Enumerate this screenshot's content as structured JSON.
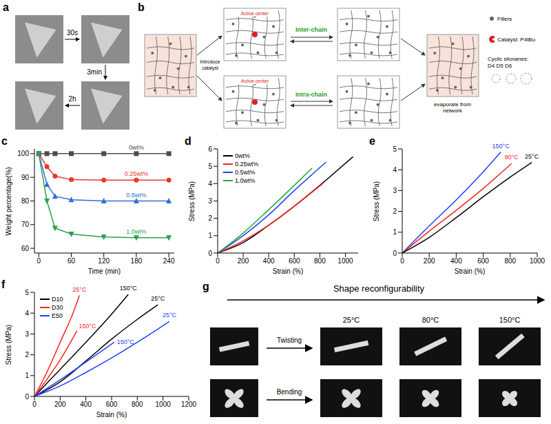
{
  "panel_a": {
    "panel": "a",
    "steps": [
      "30s",
      "3min",
      "2h"
    ]
  },
  "panel_b": {
    "panel": "b",
    "start": "Introduce catalyst",
    "active": "Active center",
    "inter": "Inter-chain",
    "intra": "Intra-chain",
    "evaporate": "evaporate from network",
    "key": [
      "Fillers",
      "Catalyst: P4tBu",
      "Cyclic siloxanes: D4 D5 D6"
    ]
  },
  "chart_data": [
    {
      "panel": "c",
      "type": "line",
      "x_label": "Time (min)",
      "y_label": "Weight percentage(%)",
      "xlim": [
        -8,
        250
      ],
      "xticks": [
        0,
        60,
        120,
        180,
        240
      ],
      "ylim": [
        58,
        102
      ],
      "yticks": [
        60,
        70,
        80,
        90,
        100
      ],
      "x": [
        0,
        15,
        30,
        60,
        120,
        180,
        240
      ],
      "series": [
        {
          "name": "0wt%",
          "color": "#4d4d4d",
          "marker": "square",
          "values": [
            100,
            100,
            100,
            100,
            100,
            100,
            100
          ]
        },
        {
          "name": "0.25wt%",
          "color": "#e8382a",
          "marker": "circle",
          "values": [
            100,
            94.5,
            90.5,
            89,
            88.8,
            88.8,
            88.8
          ]
        },
        {
          "name": "0.5wt%",
          "color": "#2f6fd6",
          "marker": "triangle",
          "values": [
            100,
            87,
            82,
            80.5,
            80,
            80,
            80
          ]
        },
        {
          "name": "1.0wt%",
          "color": "#2aa14a",
          "marker": "triangle_down",
          "values": [
            100,
            80,
            68.5,
            66,
            64.8,
            64.5,
            64.5
          ]
        }
      ]
    },
    {
      "panel": "d",
      "type": "line",
      "x_label": "Strain (%)",
      "y_label": "Stress (MPa)",
      "xlim": [
        0,
        1100
      ],
      "xticks": [
        0,
        200,
        400,
        600,
        800,
        1000
      ],
      "ylim": [
        0,
        6
      ],
      "yticks": [
        0,
        1,
        2,
        3,
        4,
        5,
        6
      ],
      "legend": "upper left",
      "series": [
        {
          "name": "0wt%",
          "color": "#000000",
          "x": [
            0,
            200,
            400,
            600,
            800,
            1060
          ],
          "values": [
            0,
            0.6,
            1.6,
            2.7,
            3.9,
            5.55
          ]
        },
        {
          "name": "0.25wt%",
          "color": "#ff1f1f",
          "x": [
            0,
            200,
            400,
            600,
            830
          ],
          "values": [
            0,
            0.7,
            1.6,
            2.7,
            4.05
          ]
        },
        {
          "name": "0.5wt%",
          "color": "#1f3fff",
          "x": [
            0,
            200,
            400,
            600,
            850
          ],
          "values": [
            0,
            1.0,
            2.2,
            3.6,
            5.25
          ]
        },
        {
          "name": "1.0wt%",
          "color": "#22a832",
          "x": [
            0,
            200,
            400,
            600,
            740
          ],
          "values": [
            0,
            1.15,
            2.5,
            3.9,
            4.9
          ]
        }
      ]
    },
    {
      "panel": "e",
      "type": "line",
      "x_label": "Strain (%)",
      "y_label": "Stress (MPa)",
      "xlim": [
        0,
        1000
      ],
      "xticks": [
        0,
        200,
        400,
        600,
        800,
        1000
      ],
      "ylim": [
        0,
        5
      ],
      "yticks": [
        0,
        1,
        2,
        3,
        4,
        5
      ],
      "series": [
        {
          "name": "150°C",
          "color": "#1f3fff",
          "x": [
            0,
            200,
            400,
            600,
            730
          ],
          "values": [
            0,
            1.3,
            2.55,
            3.9,
            4.85
          ]
        },
        {
          "name": "80°C",
          "color": "#ff1f1f",
          "x": [
            0,
            200,
            400,
            600,
            810
          ],
          "values": [
            0,
            1.05,
            2.05,
            3.1,
            4.3
          ]
        },
        {
          "name": "25°C",
          "color": "#000000",
          "x": [
            0,
            200,
            400,
            600,
            800,
            960
          ],
          "values": [
            0,
            0.75,
            1.7,
            2.7,
            3.65,
            4.35
          ]
        }
      ]
    },
    {
      "panel": "f",
      "type": "line",
      "x_label": "Strain (%)",
      "y_label": "Stress (MPa)",
      "xlim": [
        0,
        1200
      ],
      "xticks": [
        0,
        200,
        400,
        600,
        800,
        1000,
        1200
      ],
      "ylim": [
        0,
        5
      ],
      "yticks": [
        0,
        1,
        2,
        3,
        4,
        5
      ],
      "legend": "upper left",
      "series": [
        {
          "name": "D10",
          "label": "25°C",
          "color": "#000000",
          "x": [
            0,
            200,
            400,
            600,
            800,
            960
          ],
          "values": [
            0,
            0.7,
            1.7,
            2.75,
            3.7,
            4.4
          ]
        },
        {
          "name": "D10",
          "label": "150°C",
          "color": "#000000",
          "x": [
            0,
            200,
            400,
            600,
            730
          ],
          "values": [
            0,
            1.3,
            2.6,
            3.95,
            4.9
          ]
        },
        {
          "name": "D30",
          "label": "25°C",
          "color": "#ff1f1f",
          "x": [
            0,
            100,
            200,
            300,
            350
          ],
          "values": [
            0,
            1.2,
            2.6,
            4.0,
            4.85
          ]
        },
        {
          "name": "D30",
          "label": "150°C",
          "color": "#ff1f1f",
          "x": [
            0,
            100,
            200,
            330
          ],
          "values": [
            0,
            0.85,
            1.75,
            3.15
          ]
        },
        {
          "name": "E50",
          "label": "150°C",
          "color": "#1f3fff",
          "x": [
            0,
            200,
            400,
            620
          ],
          "values": [
            0,
            0.8,
            1.65,
            2.6
          ]
        },
        {
          "name": "E50",
          "label": "25°C",
          "color": "#1f3fff",
          "x": [
            0,
            200,
            400,
            600,
            800,
            1050
          ],
          "values": [
            0,
            0.5,
            1.15,
            1.85,
            2.6,
            3.6
          ]
        }
      ]
    }
  ],
  "panel_g": {
    "panel": "g",
    "title": "Shape reconfigurability",
    "actions": [
      "Twisting",
      "Bending"
    ],
    "temperatures": [
      "25°C",
      "80°C",
      "150°C"
    ]
  }
}
